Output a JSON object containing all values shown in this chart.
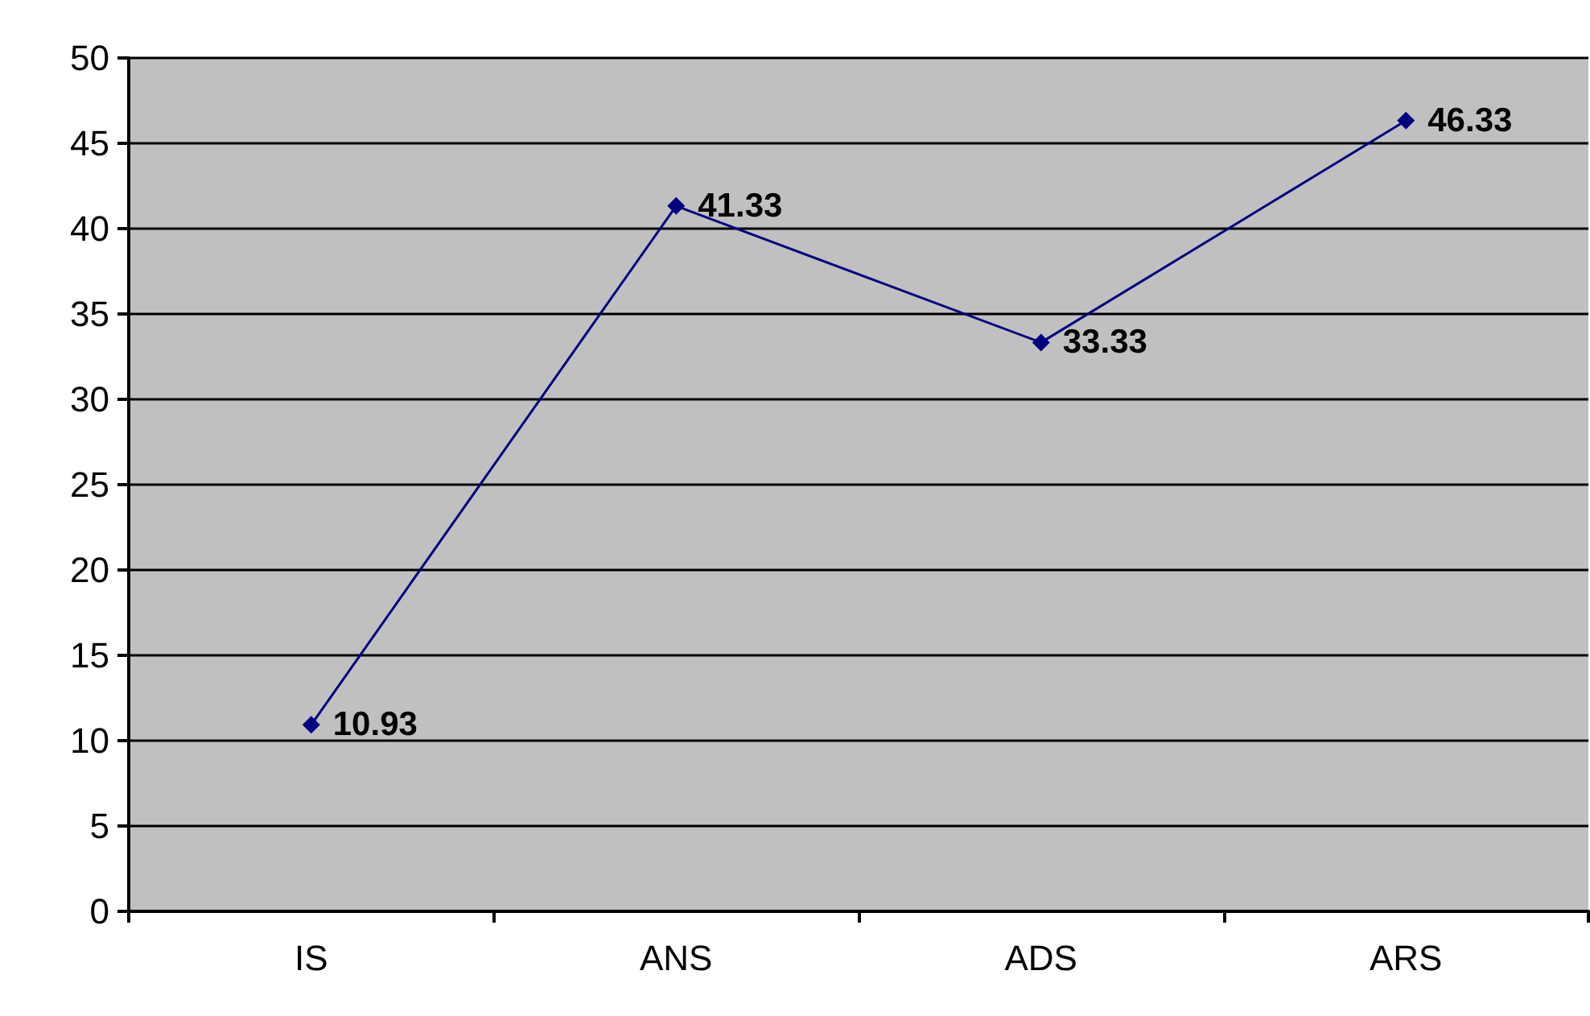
{
  "chart_data": {
    "type": "line",
    "categories": [
      "IS",
      "ANS",
      "ADS",
      "ARS"
    ],
    "series": [
      {
        "color": "#000080",
        "values": [
          10.93,
          41.33,
          33.33,
          46.33
        ]
      }
    ],
    "ylim": [
      0,
      50
    ],
    "yticks": [
      0,
      5,
      10,
      15,
      20,
      25,
      30,
      35,
      40,
      45,
      50
    ],
    "grid": "y",
    "marker": "diamond",
    "line_style": "solid",
    "data_labels": true
  }
}
